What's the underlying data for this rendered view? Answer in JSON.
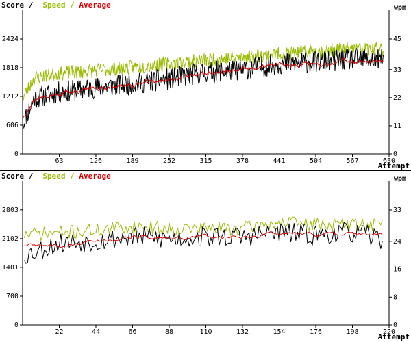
{
  "chart_data": [
    {
      "type": "line",
      "labels": {
        "score": "Score /",
        "speed": "Speed /",
        "average": "Average",
        "right_unit": "wpm",
        "xlabel": "Attempt"
      },
      "colors": {
        "score": "#000000",
        "speed": "#99bb00",
        "average": "#dd0000"
      },
      "xlim": [
        0,
        630
      ],
      "xticks": [
        63,
        126,
        189,
        252,
        315,
        378,
        441,
        504,
        567,
        630
      ],
      "ylim": [
        0,
        3030
      ],
      "yticks_left": [
        0,
        606,
        1212,
        1818,
        2424
      ],
      "ylim_right": [
        0,
        56.25
      ],
      "yticks_right": [
        0,
        11,
        22,
        33,
        45
      ],
      "n_points": 620,
      "series": [
        {
          "name": "Score",
          "key": "score",
          "anchors": [
            [
              1,
              650
            ],
            [
              20,
              1180
            ],
            [
              63,
              1300
            ],
            [
              126,
              1400
            ],
            [
              189,
              1480
            ],
            [
              252,
              1580
            ],
            [
              315,
              1720
            ],
            [
              378,
              1780
            ],
            [
              441,
              1900
            ],
            [
              504,
              1930
            ],
            [
              567,
              2000
            ],
            [
              620,
              1980
            ]
          ],
          "noise": 230,
          "seed": 11
        },
        {
          "name": "Speed",
          "key": "speed",
          "anchors": [
            [
              1,
              1200
            ],
            [
              20,
              1600
            ],
            [
              63,
              1700
            ],
            [
              126,
              1760
            ],
            [
              189,
              1830
            ],
            [
              252,
              1900
            ],
            [
              315,
              1980
            ],
            [
              378,
              2040
            ],
            [
              441,
              2120
            ],
            [
              504,
              2160
            ],
            [
              567,
              2220
            ],
            [
              620,
              2200
            ]
          ],
          "noise": 150,
          "seed": 23
        },
        {
          "name": "Average",
          "key": "average",
          "anchors": [
            [
              1,
              780
            ],
            [
              20,
              1150
            ],
            [
              63,
              1270
            ],
            [
              126,
              1380
            ],
            [
              189,
              1460
            ],
            [
              252,
              1570
            ],
            [
              315,
              1700
            ],
            [
              378,
              1760
            ],
            [
              441,
              1880
            ],
            [
              504,
              1910
            ],
            [
              567,
              1970
            ],
            [
              620,
              1940
            ]
          ],
          "noise": 70,
          "seed": 37
        }
      ]
    },
    {
      "type": "line",
      "labels": {
        "score": "Score /",
        "speed": "Speed /",
        "average": "Average",
        "right_unit": "wpm",
        "xlabel": "Attempt"
      },
      "colors": {
        "score": "#000000",
        "speed": "#99bb00",
        "average": "#dd0000"
      },
      "xlim": [
        0,
        220
      ],
      "xticks": [
        22,
        44,
        66,
        88,
        110,
        132,
        154,
        176,
        198,
        220
      ],
      "ylim": [
        0,
        3500
      ],
      "yticks_left": [
        0,
        700,
        1401,
        2102,
        2803
      ],
      "ylim_right": [
        0,
        41.25
      ],
      "yticks_right": [
        0,
        8,
        16,
        24,
        33
      ],
      "n_points": 216,
      "series": [
        {
          "name": "Score",
          "key": "score",
          "anchors": [
            [
              1,
              1700
            ],
            [
              22,
              2000
            ],
            [
              44,
              2050
            ],
            [
              66,
              2150
            ],
            [
              88,
              2100
            ],
            [
              110,
              2150
            ],
            [
              132,
              2150
            ],
            [
              154,
              2250
            ],
            [
              176,
              2200
            ],
            [
              198,
              2250
            ],
            [
              216,
              2100
            ]
          ],
          "noise": 260,
          "seed": 53
        },
        {
          "name": "Speed",
          "key": "speed",
          "anchors": [
            [
              1,
              2200
            ],
            [
              22,
              2250
            ],
            [
              44,
              2300
            ],
            [
              66,
              2400
            ],
            [
              88,
              2350
            ],
            [
              110,
              2350
            ],
            [
              132,
              2350
            ],
            [
              154,
              2500
            ],
            [
              176,
              2450
            ],
            [
              198,
              2450
            ],
            [
              216,
              2450
            ]
          ],
          "noise": 170,
          "seed": 71
        },
        {
          "name": "Average",
          "key": "average",
          "anchors": [
            [
              1,
              1950
            ],
            [
              22,
              1900
            ],
            [
              44,
              2050
            ],
            [
              66,
              2150
            ],
            [
              88,
              2100
            ],
            [
              110,
              2150
            ],
            [
              132,
              2150
            ],
            [
              154,
              2250
            ],
            [
              176,
              2200
            ],
            [
              198,
              2250
            ],
            [
              216,
              2150
            ]
          ],
          "noise": 90,
          "seed": 89
        }
      ]
    }
  ]
}
